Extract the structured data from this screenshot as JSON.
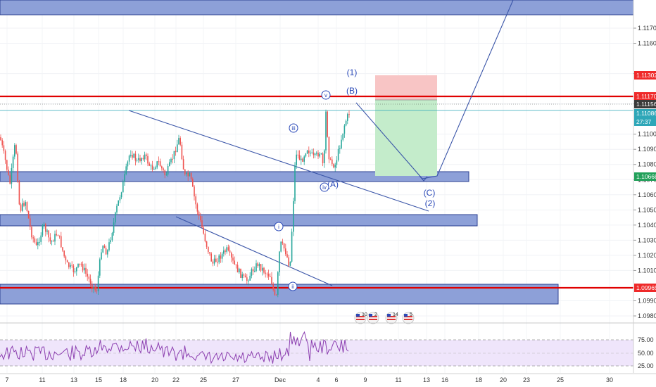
{
  "chart_data": {
    "type": "candlestick",
    "instrument_note": "EUR/USD style price chart with Elliott wave annotations",
    "x_axis": {
      "tick_labels": [
        "7",
        "11",
        "13",
        "15",
        "18",
        "20",
        "22",
        "25",
        "27",
        "Dec",
        "4",
        "6",
        "9",
        "11",
        "13",
        "16",
        "18",
        "20",
        "23",
        "25",
        "30"
      ]
    },
    "y_axis": {
      "range": [
        1.0975,
        1.1185
      ],
      "tick_labels": [
        "1.11700",
        "1.11600",
        "1.11400",
        "1.11200",
        "1.11000",
        "1.10900",
        "1.10800",
        "1.10700",
        "1.10600",
        "1.10500",
        "1.10400",
        "1.10300",
        "1.10200",
        "1.10100",
        "1.09900",
        "1.09800"
      ],
      "tick_values": [
        1.117,
        1.116,
        1.114,
        1.112,
        1.11,
        1.109,
        1.108,
        1.107,
        1.106,
        1.105,
        1.104,
        1.103,
        1.102,
        1.101,
        1.099,
        1.098
      ]
    },
    "price_tags": [
      {
        "label": "1.11302",
        "value": 1.11302,
        "color": "#ef2a2a"
      },
      {
        "label": "1.11170",
        "value": 1.1117,
        "color": "#ef2a2a"
      },
      {
        "label": "1.11156",
        "value": 1.11156,
        "color": "#3a3a3a"
      },
      {
        "label": "1.11086",
        "value": 1.11086,
        "color": "#2ea7b8"
      },
      {
        "label": "27:37",
        "value": 1.1101,
        "color": "#2ea7b8"
      },
      {
        "label": "1.10668",
        "value": 1.10668,
        "color": "#22a05a"
      },
      {
        "label": "1.09965",
        "value": 1.09965,
        "color": "#ef2a2a"
      }
    ],
    "horizontal_lines": [
      {
        "value": 1.1117,
        "color": "#e00000"
      },
      {
        "value": 1.09965,
        "color": "#e00000"
      }
    ],
    "wave_labels": [
      "(1)",
      "(B)",
      "(C)",
      "(2)",
      "(A)"
    ],
    "circled_wave_labels": [
      "v",
      "iii",
      "iv",
      "i",
      "ii"
    ],
    "event_badges": [
      "10",
      "2",
      "14",
      "5"
    ],
    "rsi": {
      "levels": [
        75.0,
        50.0,
        25.0
      ],
      "tick_labels": [
        "75.00",
        "50.00",
        "25.00"
      ]
    }
  }
}
